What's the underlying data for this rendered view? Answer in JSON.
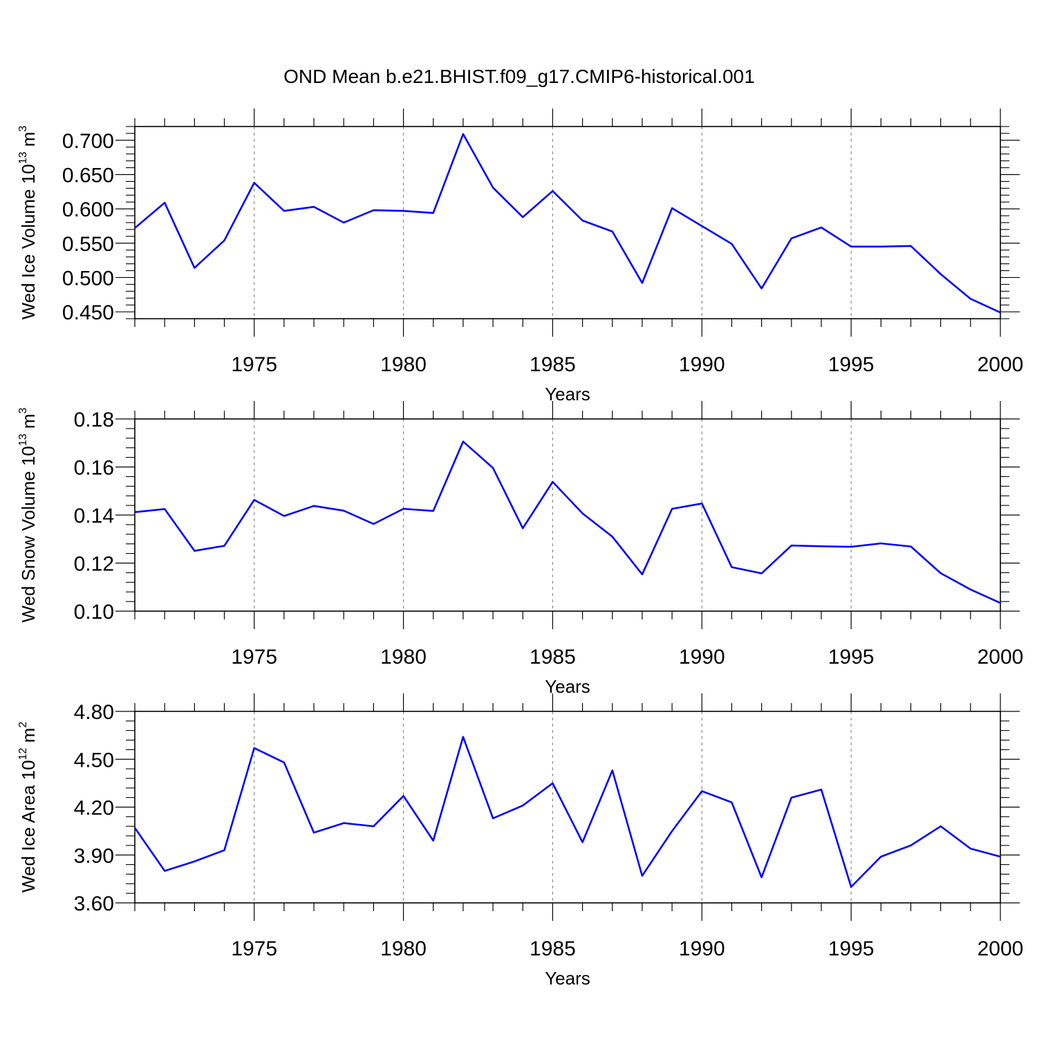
{
  "title": "OND Mean b.e21.BHIST.f09_g17.CMIP6-historical.001",
  "chart_data": [
    {
      "type": "line",
      "ylabel": {
        "prefix": "Wed Ice Volume 10",
        "sup": "13",
        "mid": " m",
        "sup2": "3"
      },
      "xlabel": "Years",
      "xlim": [
        1971,
        2000
      ],
      "ylim": [
        0.44,
        0.72
      ],
      "x_ticks": [
        1975,
        1980,
        1985,
        1990,
        1995,
        2000
      ],
      "y_ticks": [
        "0.450",
        "0.500",
        "0.550",
        "0.600",
        "0.650",
        "0.700"
      ],
      "grid": "vertical dashed lines at major x ticks",
      "line_color": "#0000ff",
      "x": [
        1971,
        1972,
        1973,
        1974,
        1975,
        1976,
        1977,
        1978,
        1979,
        1980,
        1981,
        1982,
        1983,
        1984,
        1985,
        1986,
        1987,
        1988,
        1989,
        1990,
        1991,
        1992,
        1993,
        1994,
        1995,
        1996,
        1997,
        1998,
        1999,
        2000
      ],
      "values": [
        0.572,
        0.609,
        0.514,
        0.554,
        0.638,
        0.597,
        0.603,
        0.58,
        0.598,
        0.597,
        0.594,
        0.709,
        0.631,
        0.588,
        0.626,
        0.583,
        0.567,
        0.492,
        0.601,
        0.575,
        0.549,
        0.484,
        0.557,
        0.573,
        0.545,
        0.545,
        0.546,
        0.505,
        0.469,
        0.449
      ]
    },
    {
      "type": "line",
      "ylabel": {
        "prefix": "Wed Snow Volume 10",
        "sup": "13",
        "mid": " m",
        "sup2": "3"
      },
      "xlabel": "Years",
      "xlim": [
        1971,
        2000
      ],
      "ylim": [
        0.1,
        0.18
      ],
      "x_ticks": [
        1975,
        1980,
        1985,
        1990,
        1995,
        2000
      ],
      "y_ticks": [
        "0.10",
        "0.12",
        "0.14",
        "0.16",
        "0.18"
      ],
      "grid": "vertical dashed lines at major x ticks",
      "line_color": "#0000ff",
      "x": [
        1971,
        1972,
        1973,
        1974,
        1975,
        1976,
        1977,
        1978,
        1979,
        1980,
        1981,
        1982,
        1983,
        1984,
        1985,
        1986,
        1987,
        1988,
        1989,
        1990,
        1991,
        1992,
        1993,
        1994,
        1995,
        1996,
        1997,
        1998,
        1999,
        2000
      ],
      "values": [
        0.1412,
        0.1425,
        0.1251,
        0.1272,
        0.1463,
        0.1396,
        0.1438,
        0.1418,
        0.1363,
        0.1426,
        0.1417,
        0.1706,
        0.1596,
        0.1345,
        0.1538,
        0.1407,
        0.131,
        0.1153,
        0.1426,
        0.1448,
        0.1183,
        0.1157,
        0.1273,
        0.127,
        0.1268,
        0.1282,
        0.1269,
        0.1158,
        0.109,
        0.1034
      ]
    },
    {
      "type": "line",
      "ylabel": {
        "prefix": "Wed Ice Area 10",
        "sup": "12",
        "mid": " m",
        "sup2": "2"
      },
      "xlabel": "Years",
      "xlim": [
        1971,
        2000
      ],
      "ylim": [
        3.6,
        4.8
      ],
      "x_ticks": [
        1975,
        1980,
        1985,
        1990,
        1995,
        2000
      ],
      "y_ticks": [
        "3.60",
        "3.90",
        "4.20",
        "4.50",
        "4.80"
      ],
      "grid": "vertical dashed lines at major x ticks",
      "line_color": "#0000ff",
      "x": [
        1971,
        1972,
        1973,
        1974,
        1975,
        1976,
        1977,
        1978,
        1979,
        1980,
        1981,
        1982,
        1983,
        1984,
        1985,
        1986,
        1987,
        1988,
        1989,
        1990,
        1991,
        1992,
        1993,
        1994,
        1995,
        1996,
        1997,
        1998,
        1999,
        2000
      ],
      "values": [
        4.07,
        3.8,
        3.86,
        3.93,
        4.57,
        4.48,
        4.04,
        4.1,
        4.08,
        4.27,
        3.99,
        4.64,
        4.13,
        4.21,
        4.35,
        3.98,
        4.43,
        3.77,
        4.05,
        4.3,
        4.23,
        3.76,
        4.26,
        4.31,
        3.7,
        3.89,
        3.96,
        4.08,
        3.94,
        3.89
      ]
    }
  ]
}
